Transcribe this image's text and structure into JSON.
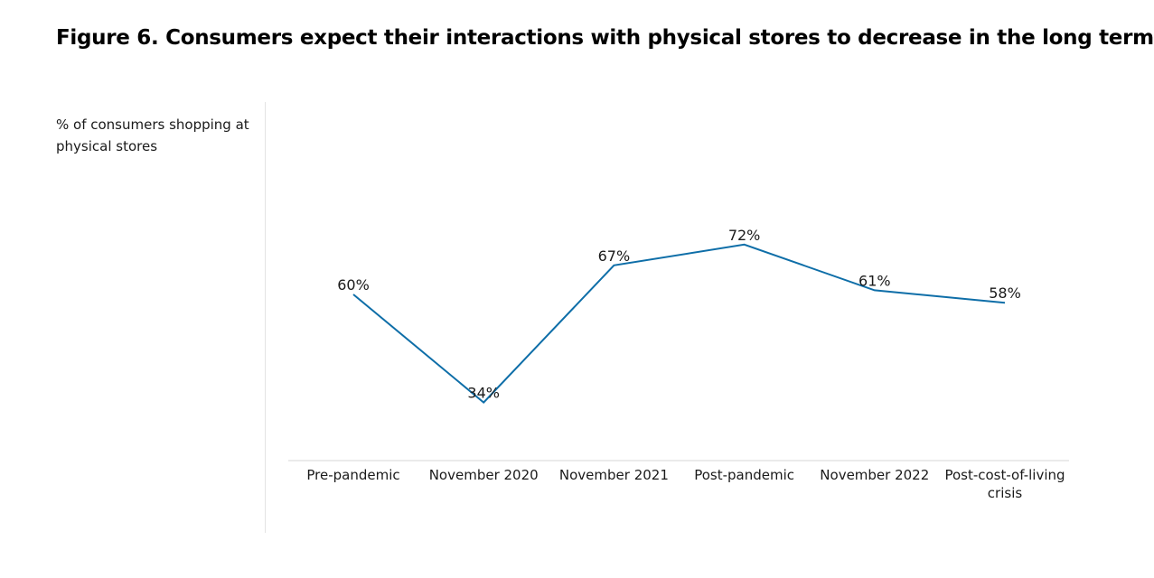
{
  "chart_data": {
    "type": "line",
    "title": "Figure 6. Consumers expect their interactions with physical stores to decrease in the long term",
    "ylabel": "% of consumers shopping at physical stores",
    "xlabel": "",
    "categories": [
      "Pre-pandemic",
      "November 2020",
      "November 2021",
      "Post-pandemic",
      "November 2022",
      "Post-cost-of-living crisis"
    ],
    "series": [
      {
        "values": [
          60,
          34,
          67,
          72,
          61,
          58
        ],
        "labels": [
          "60%",
          "34%",
          "67%",
          "72%",
          "61%",
          "58%"
        ]
      }
    ],
    "ylim": [
      0,
      100
    ],
    "grid": false,
    "line_color": "#0e6ea8"
  }
}
